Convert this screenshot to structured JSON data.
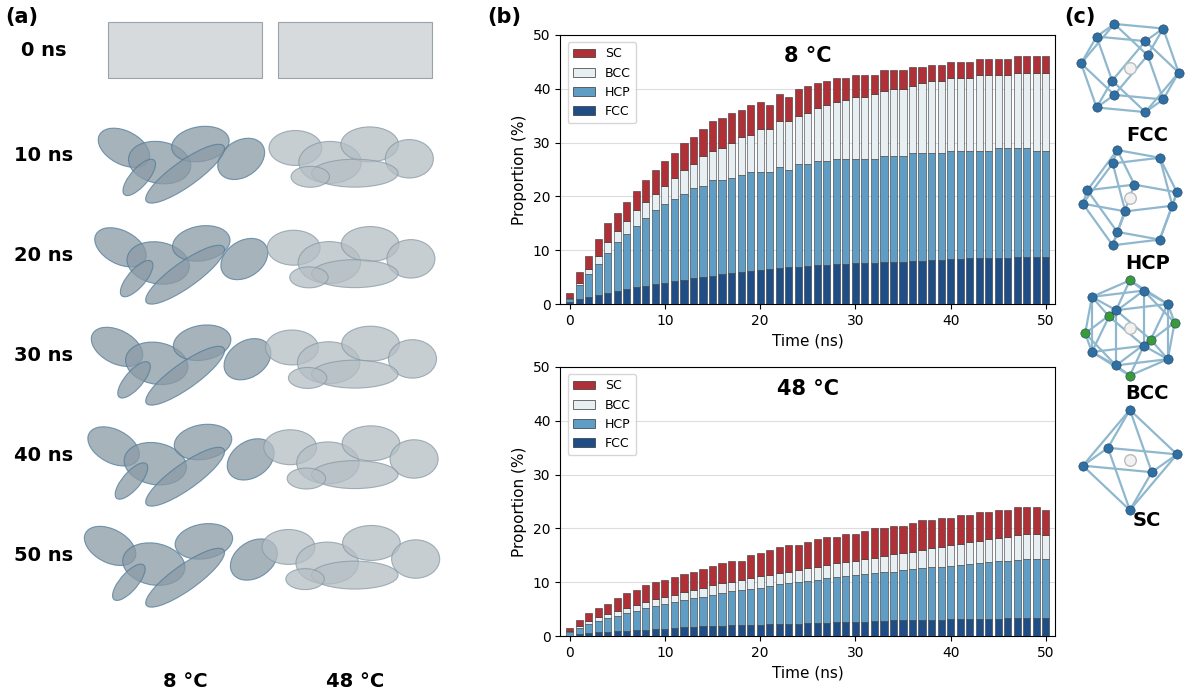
{
  "chart_data": [
    {
      "type": "bar",
      "stacked": true,
      "title": "8 °C",
      "x_label": "Time (ns)",
      "y_label": "Proportion (%)",
      "x": [
        0,
        1,
        2,
        3,
        4,
        5,
        6,
        7,
        8,
        9,
        10,
        11,
        12,
        13,
        14,
        15,
        16,
        17,
        18,
        19,
        20,
        21,
        22,
        23,
        24,
        25,
        26,
        27,
        28,
        29,
        30,
        31,
        32,
        33,
        34,
        35,
        36,
        37,
        38,
        39,
        40,
        41,
        42,
        43,
        44,
        45,
        46,
        47,
        48,
        49,
        50
      ],
      "xlim": [
        -1,
        51
      ],
      "xticks": [
        0,
        10,
        20,
        30,
        40,
        50
      ],
      "ylim": [
        0,
        50
      ],
      "yticks": [
        0,
        10,
        20,
        30,
        40,
        50
      ],
      "grid": true,
      "legend": "upper left",
      "series": [
        {
          "name": "FCC",
          "color": "#1f4e86",
          "values": [
            0.3,
            1,
            1.3,
            1.7,
            2.1,
            2.4,
            2.8,
            3.1,
            3.4,
            3.7,
            4,
            4.2,
            4.5,
            4.8,
            5,
            5.2,
            5.5,
            5.7,
            6,
            6.2,
            6.3,
            6.5,
            6.7,
            6.8,
            6.9,
            7,
            7.2,
            7.3,
            7.4,
            7.5,
            7.6,
            7.7,
            7.6,
            7.8,
            7.8,
            7.9,
            8,
            8,
            8.1,
            8.2,
            8.3,
            8.4,
            8.5,
            8.5,
            8.5,
            8.6,
            8.6,
            8.7,
            8.7,
            8.7,
            8.8
          ]
        },
        {
          "name": "HCP",
          "color": "#5f9dc4",
          "values": [
            0.7,
            2.5,
            4.2,
            5.8,
            7.4,
            9.1,
            10.2,
            11.4,
            12.6,
            13.8,
            14.5,
            15.3,
            16,
            16.7,
            17,
            17.8,
            17.5,
            17.8,
            18,
            18.3,
            18.2,
            18,
            18.8,
            18.2,
            19.1,
            19,
            19.3,
            19.2,
            19.6,
            19.5,
            19.4,
            19.3,
            19.4,
            19.7,
            19.7,
            19.6,
            20,
            20,
            19.9,
            19.8,
            20.2,
            20.1,
            20,
            20,
            20,
            20.4,
            20.4,
            20.3,
            20.3,
            19.8,
            19.7
          ]
        },
        {
          "name": "BCC",
          "color": "#e8eff2",
          "values": [
            0.2,
            0.5,
            1,
            1.5,
            2,
            2,
            2.5,
            3,
            3,
            3,
            3.5,
            4,
            4.5,
            4.5,
            5.5,
            5.5,
            6,
            6.5,
            7,
            7,
            8,
            8,
            8.5,
            9,
            9,
            9.5,
            10,
            10.5,
            10.5,
            11,
            11.5,
            11.5,
            12,
            12,
            12.5,
            12.5,
            12.5,
            13,
            13.5,
            13.5,
            13.5,
            13.5,
            13.5,
            14,
            14,
            13.5,
            13.5,
            14,
            14,
            14.5,
            14.5
          ]
        },
        {
          "name": "SC",
          "color": "#b03038",
          "values": [
            0.8,
            2,
            2.5,
            3,
            3.5,
            3.5,
            3.5,
            3.5,
            4,
            4.5,
            4.5,
            4.5,
            5,
            5,
            5,
            5.5,
            5.5,
            5.5,
            5,
            5.5,
            5,
            4.5,
            5,
            4.5,
            5,
            5,
            4.5,
            4.5,
            4.5,
            4,
            4,
            4,
            3.5,
            4,
            3.5,
            3.5,
            3.5,
            3,
            3,
            3,
            3,
            3,
            3,
            3,
            3,
            3,
            3,
            3,
            3,
            3,
            3
          ]
        }
      ]
    },
    {
      "type": "bar",
      "stacked": true,
      "title": "48 °C",
      "x_label": "Time (ns)",
      "y_label": "Proportion (%)",
      "x": [
        0,
        1,
        2,
        3,
        4,
        5,
        6,
        7,
        8,
        9,
        10,
        11,
        12,
        13,
        14,
        15,
        16,
        17,
        18,
        19,
        20,
        21,
        22,
        23,
        24,
        25,
        26,
        27,
        28,
        29,
        30,
        31,
        32,
        33,
        34,
        35,
        36,
        37,
        38,
        39,
        40,
        41,
        42,
        43,
        44,
        45,
        46,
        47,
        48,
        49,
        50
      ],
      "xlim": [
        -1,
        51
      ],
      "xticks": [
        0,
        10,
        20,
        30,
        40,
        50
      ],
      "ylim": [
        0,
        50
      ],
      "yticks": [
        0,
        10,
        20,
        30,
        40,
        50
      ],
      "grid": true,
      "legend": "upper left",
      "series": [
        {
          "name": "FCC",
          "color": "#1f4e86",
          "values": [
            0.1,
            0.4,
            0.6,
            0.7,
            0.8,
            0.9,
            1,
            1.1,
            1.2,
            1.3,
            1.4,
            1.5,
            1.6,
            1.7,
            1.8,
            1.8,
            1.9,
            2,
            2,
            2.1,
            2.1,
            2.2,
            2.2,
            2.3,
            2.3,
            2.4,
            2.5,
            2.5,
            2.6,
            2.6,
            2.7,
            2.7,
            2.8,
            2.8,
            2.9,
            2.9,
            2.9,
            3,
            3,
            3,
            3.1,
            3.1,
            3.1,
            3.2,
            3.2,
            3.2,
            3.3,
            3.3,
            3.4,
            3.4,
            3.3
          ]
        },
        {
          "name": "HCP",
          "color": "#5f9dc4",
          "values": [
            0.6,
            1.1,
            1.6,
            2.1,
            2.5,
            2.9,
            3.3,
            3.6,
            4,
            4.3,
            4.6,
            4.8,
            5.1,
            5.3,
            5.5,
            5.9,
            6.1,
            6.3,
            6.5,
            6.7,
            6.9,
            7.1,
            7.4,
            7.5,
            7.7,
            7.8,
            8,
            8.2,
            8.3,
            8.5,
            8.6,
            8.8,
            8.9,
            9.1,
            9.1,
            9.3,
            9.5,
            9.6,
            9.8,
            9.9,
            9.9,
            10.1,
            10.3,
            10.3,
            10.5,
            10.7,
            10.7,
            10.8,
            10.9,
            11,
            11
          ]
        },
        {
          "name": "BCC",
          "color": "#e8eff2",
          "values": [
            0.2,
            0.4,
            0.6,
            0.7,
            0.8,
            0.9,
            1,
            1.1,
            1.2,
            1.3,
            1.3,
            1.4,
            1.5,
            1.6,
            1.7,
            1.7,
            1.8,
            1.8,
            1.9,
            2,
            2.1,
            2.1,
            2.1,
            2.2,
            2.3,
            2.4,
            2.4,
            2.5,
            2.6,
            2.7,
            2.7,
            2.8,
            2.9,
            3,
            3.2,
            3.2,
            3.3,
            3.4,
            3.5,
            3.7,
            3.9,
            3.9,
            4,
            4.2,
            4.3,
            4.4,
            4.5,
            4.7,
            4.7,
            4.6,
            4.5
          ]
        },
        {
          "name": "SC",
          "color": "#b03038",
          "values": [
            0.6,
            1.1,
            1.5,
            1.8,
            1.9,
            2.3,
            2.7,
            2.7,
            3.1,
            3.1,
            3.2,
            3.3,
            3.3,
            3.4,
            3.5,
            3.6,
            3.7,
            3.9,
            3.6,
            4.2,
            4.4,
            4.6,
            4.8,
            5,
            4.7,
            4.9,
            5.1,
            5.3,
            5,
            5.2,
            5,
            5.2,
            5.4,
            5.1,
            5.3,
            5.1,
            5.3,
            5.5,
            5.2,
            5.4,
            5.1,
            5.4,
            5.1,
            5.3,
            5,
            5.2,
            5,
            5.2,
            5,
            5,
            4.7
          ]
        }
      ]
    }
  ],
  "panels": {
    "a": {
      "label": "(a)",
      "times": [
        "0 ns",
        "10 ns",
        "20 ns",
        "30 ns",
        "40 ns",
        "50 ns"
      ],
      "temperatures": [
        "8 °C",
        "48 °C"
      ]
    },
    "b": {
      "label": "(b)"
    },
    "c": {
      "label": "(c)",
      "structures": [
        "FCC",
        "HCP",
        "BCC",
        "SC"
      ]
    }
  }
}
